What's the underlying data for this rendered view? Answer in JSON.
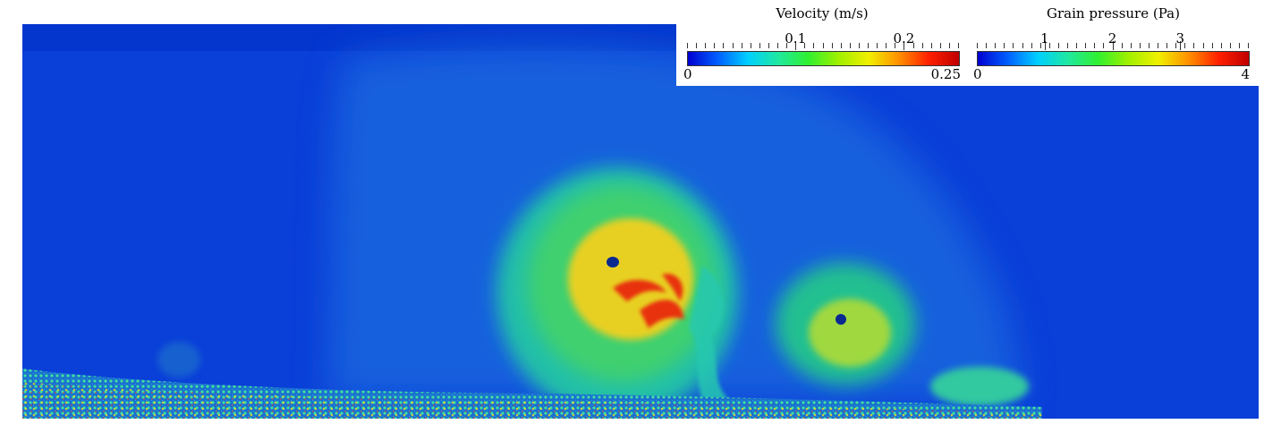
{
  "colormap": [
    "#0000d0",
    "#0060ff",
    "#00d0ff",
    "#20e8a0",
    "#30f030",
    "#a0f000",
    "#f0f000",
    "#ff9000",
    "#ff2000",
    "#c00000"
  ],
  "legends": {
    "velocity": {
      "title": "Velocity (m/s)",
      "min_label": "0",
      "max_label": "0.25",
      "ticks": [
        "0.1",
        "0.2"
      ],
      "tick_values": [
        0.1,
        0.2
      ],
      "range": [
        0,
        0.25
      ]
    },
    "pressure": {
      "title": "Grain pressure (Pa)",
      "min_label": "0",
      "max_label": "4",
      "ticks": [
        "1",
        "2",
        "3"
      ],
      "tick_values": [
        1,
        2,
        3
      ],
      "range": [
        0,
        4
      ]
    }
  }
}
